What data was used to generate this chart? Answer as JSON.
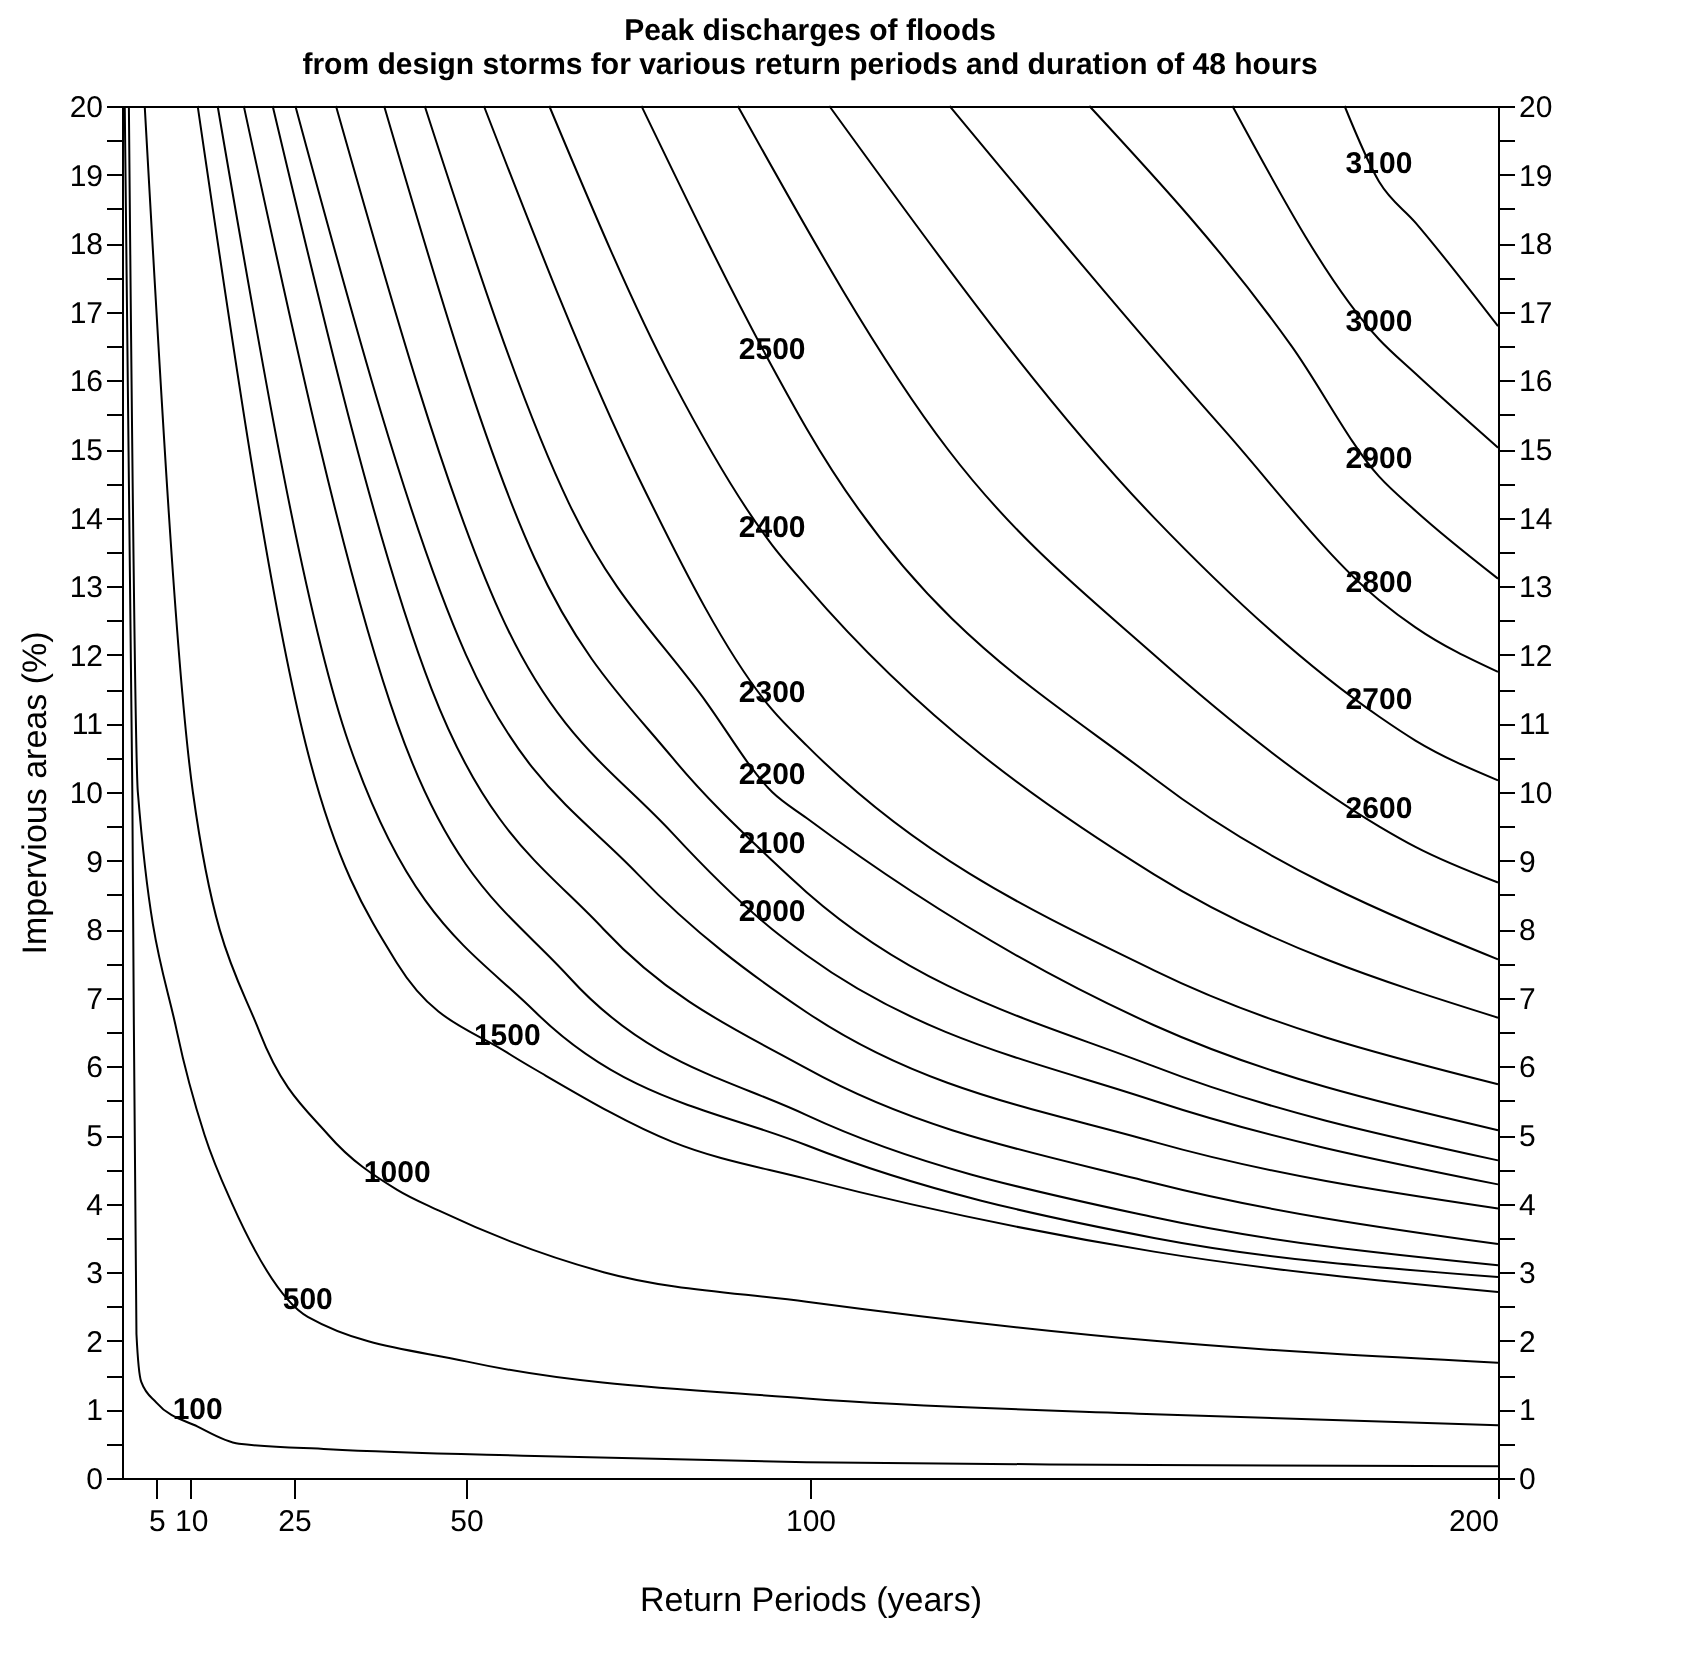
{
  "chart_data": {
    "type": "line",
    "title": "Peak discharges of floods\nfrom design storms for various return periods and duration of 48 hours",
    "xlabel": "Return Periods (years)",
    "ylabel": "Impervious areas (%)",
    "xlim": [
      0,
      200
    ],
    "xticks": [
      5,
      10,
      25,
      50,
      100,
      200
    ],
    "ylim": [
      0,
      20
    ],
    "yticks": [
      0,
      {
        "value": 0.5,
        "label": null
      },
      1,
      {
        "value": 1.5,
        "label": null
      },
      2,
      {
        "value": 2.5,
        "label": null
      },
      3,
      {
        "value": 3.5,
        "label": null
      },
      4,
      {
        "value": 4.5,
        "label": null
      },
      5,
      {
        "value": 5.5,
        "label": null
      },
      6,
      {
        "value": 6.5,
        "label": null
      },
      7,
      {
        "value": 7.5,
        "label": null
      },
      8,
      {
        "value": 8.5,
        "label": null
      },
      9,
      {
        "value": 9.5,
        "label": null
      },
      10,
      {
        "value": 10.5,
        "label": null
      },
      11,
      {
        "value": 11.5,
        "label": null
      },
      12,
      {
        "value": 12.5,
        "label": null
      },
      13,
      {
        "value": 13.5,
        "label": null
      },
      14,
      {
        "value": 14.5,
        "label": null
      },
      15,
      {
        "value": 15.5,
        "label": null
      },
      16,
      {
        "value": 16.5,
        "label": null
      },
      17,
      {
        "value": 17.5,
        "label": null
      },
      18,
      {
        "value": 18.5,
        "label": null
      },
      19,
      {
        "value": 19.5,
        "label": null
      },
      20
    ],
    "y2lim": [
      0,
      20
    ],
    "y2ticks": [
      0,
      {
        "value": 0.5,
        "label": null
      },
      1,
      {
        "value": 1.5,
        "label": null
      },
      2,
      {
        "value": 2.5,
        "label": null
      },
      3,
      {
        "value": 3.5,
        "label": null
      },
      4,
      {
        "value": 4.5,
        "label": null
      },
      5,
      {
        "value": 5.5,
        "label": null
      },
      6,
      {
        "value": 6.5,
        "label": null
      },
      7,
      {
        "value": 7.5,
        "label": null
      },
      8,
      {
        "value": 8.5,
        "label": null
      },
      9,
      {
        "value": 9.5,
        "label": null
      },
      10,
      {
        "value": 10.5,
        "label": null
      },
      11,
      {
        "value": 11.5,
        "label": null
      },
      12,
      {
        "value": 12.5,
        "label": null
      },
      13,
      {
        "value": 13.5,
        "label": null
      },
      14,
      {
        "value": 14.5,
        "label": null
      },
      15,
      {
        "value": 15.5,
        "label": null
      },
      16,
      {
        "value": 16.5,
        "label": null
      },
      17,
      {
        "value": 17.5,
        "label": null
      },
      18,
      {
        "value": 18.5,
        "label": null
      },
      19,
      {
        "value": 19.5,
        "label": null
      },
      20
    ],
    "grid": false,
    "legend": false,
    "marker": "none",
    "line_style": "solid",
    "series": [
      {
        "color": "#000000",
        "x": [
          0.4,
          1.5,
          2.1,
          2.8,
          5,
          11,
          17,
          30,
          60,
          99.5,
          150,
          200
        ],
        "values": [
          20,
          10,
          2.1,
          1.4,
          1.1,
          0.75,
          0.5,
          0.42,
          0.32,
          0.23,
          0.19,
          0.17
        ]
      },
      {
        "color": "#000000",
        "x": [
          1.0,
          2.3,
          8,
          12,
          16,
          27,
          50,
          99.5,
          150,
          200
        ],
        "values": [
          20,
          10,
          6.5,
          5.0,
          4.0,
          2.35,
          1.7,
          1.16,
          0.93,
          0.77
        ]
      },
      {
        "color": "#000000",
        "x": [
          3.3,
          10.3,
          20,
          30,
          40,
          46,
          70,
          99.5,
          150,
          200
        ],
        "values": [
          20,
          10,
          6.5,
          5.0,
          4.2,
          3.9,
          3.0,
          2.57,
          2.0,
          1.68
        ]
      },
      {
        "color": "#000000",
        "x": [
          11,
          26.7,
          40,
          56,
          61,
          80,
          99.5,
          150,
          200
        ],
        "values": [
          20,
          10.7,
          7.5,
          6.2,
          5.9,
          4.9,
          4.36,
          3.3,
          2.71
        ]
      },
      {
        "color": "#000000",
        "x": [
          13.9,
          33,
          60,
          99.5,
          150,
          200
        ],
        "values": [
          20,
          10.7,
          6.8,
          4.85,
          3.5,
          2.93
        ]
      },
      {
        "color": "#000000",
        "x": [
          17.7,
          40,
          65,
          99.5,
          150,
          200
        ],
        "values": [
          20,
          11,
          7.3,
          5.29,
          3.8,
          3.1
        ]
      },
      {
        "color": "#000000",
        "x": [
          21.9,
          45,
          70,
          99.5,
          150,
          200
        ],
        "values": [
          20,
          11.5,
          8,
          5.97,
          4.3,
          3.41
        ]
      },
      {
        "color": "#000000",
        "x": [
          25.2,
          50,
          75,
          99.5,
          150,
          200
        ],
        "values": [
          20,
          12,
          8.8,
          6.79,
          4.9,
          3.93
        ]
      },
      {
        "color": "#000000",
        "x": [
          31.1,
          55,
          80,
          94.5,
          99.5,
          150,
          200
        ],
        "values": [
          20,
          12.6,
          9.4,
          8.0,
          7.62,
          5.5,
          4.28
        ]
      },
      {
        "color": "#000000",
        "x": [
          38.1,
          60,
          80,
          94.5,
          99.5,
          150,
          200
        ],
        "values": [
          20,
          13.4,
          10.5,
          9.0,
          8.54,
          6.0,
          4.63
        ]
      },
      {
        "color": "#000000",
        "x": [
          44,
          65,
          85,
          94.5,
          99.5,
          150,
          200
        ],
        "values": [
          20,
          14.2,
          11.3,
          10.0,
          9.62,
          6.6,
          5.07
        ]
      },
      {
        "color": "#000000",
        "x": [
          52.6,
          75,
          94.5,
          99.5,
          150,
          200
        ],
        "values": [
          20,
          14.6,
          11.2,
          10.68,
          7.4,
          5.74
        ]
      },
      {
        "color": "#000000",
        "x": [
          62.1,
          80,
          94.5,
          99.5,
          150,
          200
        ],
        "values": [
          20,
          16,
          13.6,
          13.0,
          8.8,
          6.71
        ]
      },
      {
        "color": "#000000",
        "x": [
          75.5,
          94.5,
          99.5,
          150,
          200
        ],
        "values": [
          20,
          16.2,
          15.3,
          10.2,
          7.56
        ]
      },
      {
        "color": "#000000",
        "x": [
          89.5,
          120,
          150,
          182.7,
          188,
          200
        ],
        "values": [
          20,
          15,
          12,
          9.5,
          9.2,
          8.68
        ]
      },
      {
        "color": "#000000",
        "x": [
          102.8,
          150,
          182.7,
          188,
          200
        ],
        "values": [
          20,
          14,
          11.1,
          10.75,
          10.17
        ]
      },
      {
        "color": "#000000",
        "x": [
          120.3,
          160,
          182.7,
          188,
          200
        ],
        "values": [
          20,
          15.3,
          12.8,
          12.4,
          11.75
        ]
      },
      {
        "color": "#000000",
        "x": [
          140.6,
          170,
          182.7,
          188,
          200
        ],
        "values": [
          20,
          16.5,
          14.6,
          14.1,
          13.11
        ]
      },
      {
        "color": "#000000",
        "x": [
          161.4,
          182.7,
          188,
          200
        ],
        "values": [
          20,
          16.6,
          16.1,
          15.02
        ]
      },
      {
        "color": "#000000",
        "x": [
          177.7,
          182.7,
          188,
          200
        ],
        "values": [
          20,
          18.9,
          18.3,
          16.79
        ]
      }
    ],
    "annotations": [
      {
        "text": "100",
        "x": 11,
        "y": 0.75
      },
      {
        "text": "500",
        "x": 27,
        "y": 2.35
      },
      {
        "text": "1000",
        "x": 40,
        "y": 4.2
      },
      {
        "text": "1500",
        "x": 56,
        "y": 6.2
      },
      {
        "text": "2000",
        "x": 94.5,
        "y": 8.0
      },
      {
        "text": "2100",
        "x": 94.5,
        "y": 9.0
      },
      {
        "text": "2200",
        "x": 94.5,
        "y": 10.0
      },
      {
        "text": "2300",
        "x": 94.5,
        "y": 11.2
      },
      {
        "text": "2400",
        "x": 94.5,
        "y": 13.6
      },
      {
        "text": "2500",
        "x": 94.5,
        "y": 16.2
      },
      {
        "text": "2600",
        "x": 182.7,
        "y": 9.5
      },
      {
        "text": "2700",
        "x": 182.7,
        "y": 11.1
      },
      {
        "text": "2800",
        "x": 182.7,
        "y": 12.8
      },
      {
        "text": "2900",
        "x": 182.7,
        "y": 14.6
      },
      {
        "text": "3000",
        "x": 182.7,
        "y": 16.6
      },
      {
        "text": "3100",
        "x": 182.7,
        "y": 18.9
      }
    ]
  }
}
